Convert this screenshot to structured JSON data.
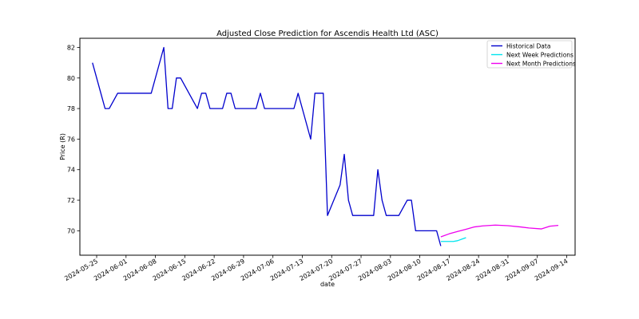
{
  "chart_data": {
    "type": "line",
    "title": "Adjusted Close Prediction for Ascendis Health Ltd (ASC)",
    "xlabel": "date",
    "ylabel": "Price (R)",
    "xlim": [
      "2024-05-21",
      "2024-09-16"
    ],
    "ylim": [
      68.4,
      82.6
    ],
    "x_ticks": [
      "2024-05-25",
      "2024-06-01",
      "2024-06-08",
      "2024-06-15",
      "2024-06-22",
      "2024-06-29",
      "2024-07-06",
      "2024-07-13",
      "2024-07-20",
      "2024-07-27",
      "2024-08-03",
      "2024-08-10",
      "2024-08-17",
      "2024-08-24",
      "2024-08-31",
      "2024-09-07",
      "2024-09-14"
    ],
    "y_ticks": [
      70,
      72,
      74,
      76,
      78,
      80,
      82
    ],
    "grid": false,
    "legend_position": "top-right",
    "series": [
      {
        "name": "Historical Data",
        "color": "#0000cd",
        "points": [
          {
            "x": "2024-05-24",
            "y": 81
          },
          {
            "x": "2024-05-27",
            "y": 78
          },
          {
            "x": "2024-05-28",
            "y": 78
          },
          {
            "x": "2024-05-29",
            "y": 78.5
          },
          {
            "x": "2024-05-30",
            "y": 79
          },
          {
            "x": "2024-05-31",
            "y": 79
          },
          {
            "x": "2024-06-03",
            "y": 79
          },
          {
            "x": "2024-06-04",
            "y": 79
          },
          {
            "x": "2024-06-05",
            "y": 79
          },
          {
            "x": "2024-06-06",
            "y": 79
          },
          {
            "x": "2024-06-07",
            "y": 79
          },
          {
            "x": "2024-06-10",
            "y": 82
          },
          {
            "x": "2024-06-11",
            "y": 78
          },
          {
            "x": "2024-06-12",
            "y": 78
          },
          {
            "x": "2024-06-13",
            "y": 80
          },
          {
            "x": "2024-06-14",
            "y": 80
          },
          {
            "x": "2024-06-18",
            "y": 78
          },
          {
            "x": "2024-06-19",
            "y": 79
          },
          {
            "x": "2024-06-20",
            "y": 79
          },
          {
            "x": "2024-06-21",
            "y": 78
          },
          {
            "x": "2024-06-24",
            "y": 78
          },
          {
            "x": "2024-06-25",
            "y": 79
          },
          {
            "x": "2024-06-26",
            "y": 79
          },
          {
            "x": "2024-06-27",
            "y": 78
          },
          {
            "x": "2024-06-28",
            "y": 78
          },
          {
            "x": "2024-07-01",
            "y": 78
          },
          {
            "x": "2024-07-02",
            "y": 78
          },
          {
            "x": "2024-07-03",
            "y": 79
          },
          {
            "x": "2024-07-04",
            "y": 78
          },
          {
            "x": "2024-07-05",
            "y": 78
          },
          {
            "x": "2024-07-08",
            "y": 78
          },
          {
            "x": "2024-07-09",
            "y": 78
          },
          {
            "x": "2024-07-10",
            "y": 78
          },
          {
            "x": "2024-07-11",
            "y": 78
          },
          {
            "x": "2024-07-12",
            "y": 79
          },
          {
            "x": "2024-07-15",
            "y": 76
          },
          {
            "x": "2024-07-16",
            "y": 79
          },
          {
            "x": "2024-07-17",
            "y": 79
          },
          {
            "x": "2024-07-18",
            "y": 79
          },
          {
            "x": "2024-07-19",
            "y": 71
          },
          {
            "x": "2024-07-22",
            "y": 73
          },
          {
            "x": "2024-07-23",
            "y": 75
          },
          {
            "x": "2024-07-24",
            "y": 72
          },
          {
            "x": "2024-07-25",
            "y": 71
          },
          {
            "x": "2024-07-26",
            "y": 71
          },
          {
            "x": "2024-07-29",
            "y": 71
          },
          {
            "x": "2024-07-30",
            "y": 71
          },
          {
            "x": "2024-07-31",
            "y": 74
          },
          {
            "x": "2024-08-01",
            "y": 72
          },
          {
            "x": "2024-08-02",
            "y": 71
          },
          {
            "x": "2024-08-05",
            "y": 71
          },
          {
            "x": "2024-08-06",
            "y": 71.5
          },
          {
            "x": "2024-08-07",
            "y": 72
          },
          {
            "x": "2024-08-08",
            "y": 72
          },
          {
            "x": "2024-08-09",
            "y": 70
          },
          {
            "x": "2024-08-12",
            "y": 70
          },
          {
            "x": "2024-08-13",
            "y": 70
          },
          {
            "x": "2024-08-14",
            "y": 70
          },
          {
            "x": "2024-08-15",
            "y": 69
          }
        ]
      },
      {
        "name": "Next Week Predictions",
        "color": "#00e5ee",
        "points": [
          {
            "x": "2024-08-15",
            "y": 69.3
          },
          {
            "x": "2024-08-16",
            "y": 69.3
          },
          {
            "x": "2024-08-17",
            "y": 69.3
          },
          {
            "x": "2024-08-18",
            "y": 69.3
          },
          {
            "x": "2024-08-19",
            "y": 69.35
          },
          {
            "x": "2024-08-20",
            "y": 69.45
          },
          {
            "x": "2024-08-21",
            "y": 69.55
          }
        ]
      },
      {
        "name": "Next Month Predictions",
        "color": "#ee00ee",
        "points": [
          {
            "x": "2024-08-15",
            "y": 69.6
          },
          {
            "x": "2024-08-17",
            "y": 69.8
          },
          {
            "x": "2024-08-19",
            "y": 69.95
          },
          {
            "x": "2024-08-21",
            "y": 70.1
          },
          {
            "x": "2024-08-23",
            "y": 70.25
          },
          {
            "x": "2024-08-25",
            "y": 70.32
          },
          {
            "x": "2024-08-28",
            "y": 70.37
          },
          {
            "x": "2024-08-31",
            "y": 70.33
          },
          {
            "x": "2024-09-03",
            "y": 70.25
          },
          {
            "x": "2024-09-05",
            "y": 70.18
          },
          {
            "x": "2024-09-08",
            "y": 70.12
          },
          {
            "x": "2024-09-10",
            "y": 70.3
          },
          {
            "x": "2024-09-12",
            "y": 70.35
          }
        ]
      }
    ]
  }
}
